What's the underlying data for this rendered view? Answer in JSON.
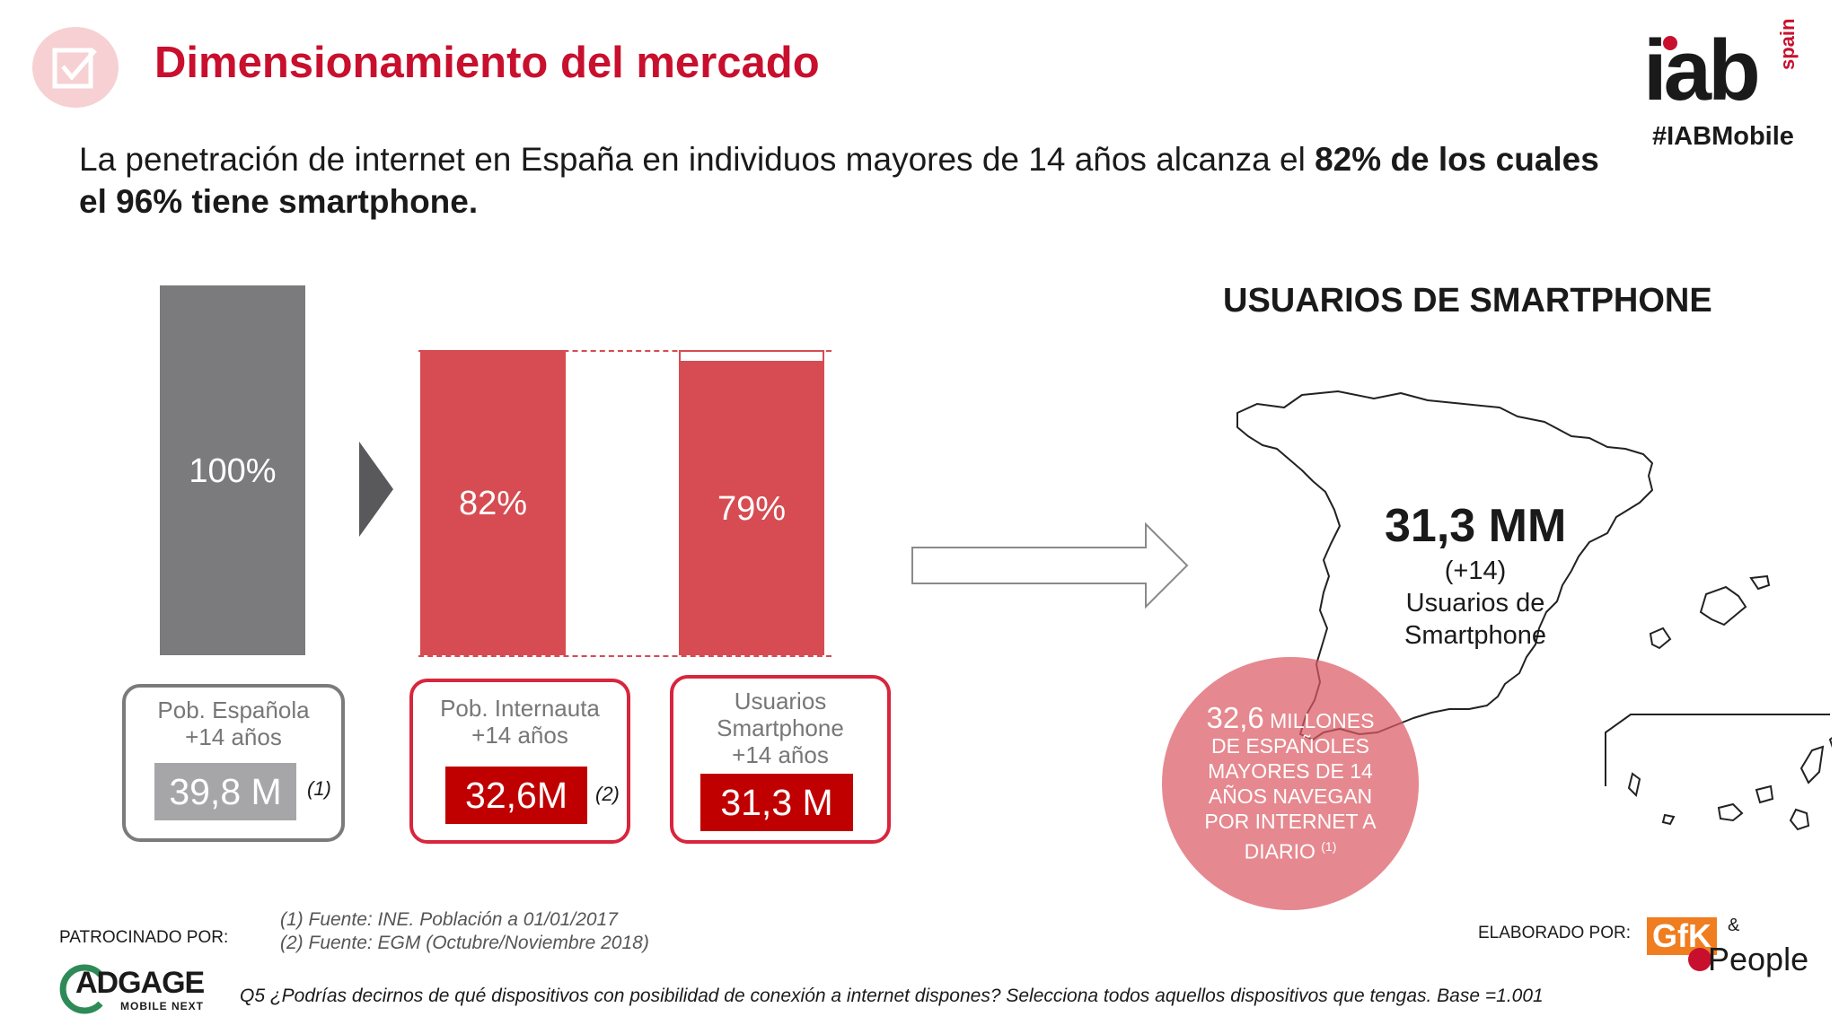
{
  "header": {
    "title": "Dimensionamiento del mercado",
    "subtitle_pre": "La penetración de internet en España en individuos mayores de 14 años alcanza el ",
    "subtitle_bold": "82% de los cuales el 96% tiene smartphone.",
    "brand": "iab",
    "brand_country": "spain",
    "hashtag": "#IABMobile"
  },
  "chart_data": {
    "type": "bar",
    "categories": [
      "Pob. Española +14 años",
      "Pob. Internauta +14 años",
      "Usuarios Smartphone +14 años"
    ],
    "values": [
      100,
      82,
      79
    ],
    "value_labels": [
      "100%",
      "82%",
      "79%"
    ],
    "colors": [
      "#7b7a7c",
      "#d64c52",
      "#d64c52"
    ],
    "ylim": [
      0,
      100
    ]
  },
  "boxes": [
    {
      "caption_l1": "Pob. Española",
      "caption_l2": "+14 años",
      "caption_l3": "",
      "value": "39,8 M",
      "note": "(1)"
    },
    {
      "caption_l1": "Pob. Internauta",
      "caption_l2": "+14 años",
      "caption_l3": "",
      "value": "32,6M",
      "note": "(2)"
    },
    {
      "caption_l1": "Usuarios",
      "caption_l2": "Smartphone",
      "caption_l3": "+14 años",
      "value": "31,3 M",
      "note": ""
    }
  ],
  "map": {
    "title": "USUARIOS DE SMARTPHONE",
    "big_value": "31,3 MM",
    "sub_l1": "(+14)",
    "sub_l2": "Usuarios de",
    "sub_l3": "Smartphone",
    "circle_big": "32,6",
    "circle_l1_rest": " MILLONES",
    "circle_l2": "DE ESPAÑOLES",
    "circle_l3": "MAYORES DE 14",
    "circle_l4": "AÑOS NAVEGAN",
    "circle_l5": "POR INTERNET A",
    "circle_l6": "DIARIO",
    "circle_note": "(1)"
  },
  "footer": {
    "sponsor_label": "PATROCINADO POR:",
    "source_1": "(1) Fuente: INE. Población a 01/01/2017",
    "source_2": "(2) Fuente: EGM (Octubre/Noviembre 2018)",
    "question": "Q5 ¿Podrías decirnos de qué dispositivos con posibilidad de conexión a internet dispones? Selecciona todos aquellos dispositivos que tengas. Base =1.001",
    "elaborated_label": "ELABORADO POR:",
    "sponsor_logo_l1": "ADGAGE",
    "sponsor_logo_l2": "MOBILE NEXT",
    "elab_logo_l1": "GfK",
    "elab_logo_amp": "&",
    "elab_logo_l2": "People"
  }
}
